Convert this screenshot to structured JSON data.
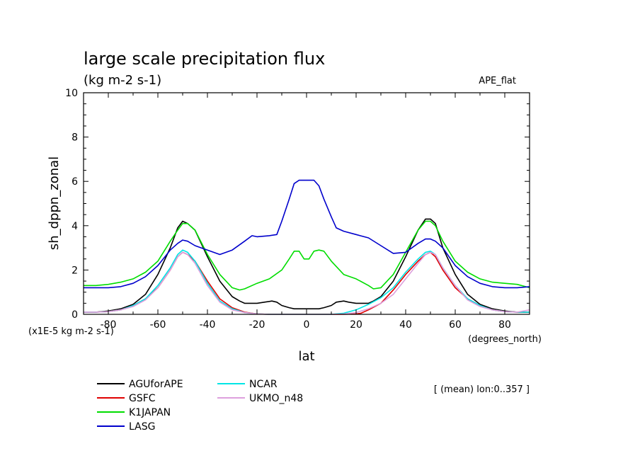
{
  "chart_data": {
    "type": "line",
    "title": "large scale precipitation flux",
    "subtitle": "(kg m-2 s-1)",
    "experiment": "APE_flat",
    "xlabel": "lat",
    "xunits": "(degrees_north)",
    "ylabel": "sh_dppn_zonal",
    "yscale_note": "(x1E-5 kg m-2 s-1)",
    "mean_note": "[ (mean) lon:0..357 ]",
    "xlim": [
      -90,
      90
    ],
    "ylim": [
      0,
      10
    ],
    "xticks": [
      -80,
      -60,
      -40,
      -20,
      0,
      20,
      40,
      60,
      80
    ],
    "yticks": [
      0,
      2,
      4,
      6,
      8,
      10
    ],
    "grid": false,
    "legend_position": "below",
    "series": [
      {
        "name": "AGUforAPE",
        "color": "#000000",
        "x": [
          -90,
          -85,
          -80,
          -75,
          -70,
          -65,
          -60,
          -55,
          -52,
          -50,
          -48,
          -45,
          -40,
          -35,
          -30,
          -27,
          -25,
          -20,
          -17,
          -14,
          -12,
          -10,
          -7,
          -5,
          -2,
          0,
          2,
          5,
          7,
          10,
          12,
          15,
          17,
          20,
          25,
          27,
          30,
          35,
          40,
          45,
          48,
          50,
          52,
          55,
          60,
          65,
          70,
          75,
          80,
          85,
          90
        ],
        "y": [
          0.1,
          0.1,
          0.15,
          0.25,
          0.45,
          0.9,
          1.8,
          3.0,
          3.9,
          4.2,
          4.1,
          3.8,
          2.6,
          1.5,
          0.8,
          0.6,
          0.5,
          0.5,
          0.55,
          0.6,
          0.55,
          0.4,
          0.3,
          0.25,
          0.25,
          0.25,
          0.25,
          0.25,
          0.3,
          0.4,
          0.55,
          0.6,
          0.55,
          0.5,
          0.5,
          0.6,
          0.8,
          1.5,
          2.6,
          3.8,
          4.3,
          4.3,
          4.1,
          3.0,
          1.8,
          0.9,
          0.45,
          0.25,
          0.15,
          0.1,
          0.1
        ]
      },
      {
        "name": "GSFC",
        "color": "#e00000",
        "x": [
          -90,
          -85,
          -80,
          -75,
          -70,
          -65,
          -60,
          -55,
          -52,
          -50,
          -48,
          -45,
          -40,
          -35,
          -30,
          -25,
          -22,
          -20,
          -15,
          -10,
          -5,
          0,
          5,
          10,
          15,
          20,
          22,
          25,
          30,
          35,
          40,
          45,
          48,
          50,
          52,
          55,
          60,
          65,
          70,
          75,
          80,
          85,
          90
        ],
        "y": [
          0.1,
          0.1,
          0.12,
          0.2,
          0.4,
          0.7,
          1.2,
          2.0,
          2.6,
          2.8,
          2.7,
          2.4,
          1.5,
          0.7,
          0.3,
          0.1,
          0.05,
          0.02,
          0.0,
          0.0,
          0.0,
          0.0,
          0.0,
          0.0,
          0.0,
          0.02,
          0.05,
          0.2,
          0.5,
          1.1,
          1.8,
          2.4,
          2.7,
          2.8,
          2.6,
          2.0,
          1.2,
          0.7,
          0.4,
          0.2,
          0.12,
          0.1,
          0.1
        ]
      },
      {
        "name": "K1JAPAN",
        "color": "#00dd00",
        "x": [
          -90,
          -85,
          -80,
          -75,
          -70,
          -65,
          -60,
          -55,
          -52,
          -50,
          -48,
          -45,
          -40,
          -35,
          -30,
          -27,
          -25,
          -20,
          -15,
          -10,
          -7,
          -5,
          -3,
          -1,
          1,
          3,
          5,
          7,
          10,
          15,
          20,
          25,
          27,
          30,
          35,
          40,
          45,
          48,
          50,
          52,
          55,
          60,
          65,
          70,
          75,
          80,
          85,
          90
        ],
        "y": [
          1.3,
          1.3,
          1.35,
          1.45,
          1.6,
          1.9,
          2.4,
          3.3,
          3.8,
          4.1,
          4.1,
          3.8,
          2.7,
          1.8,
          1.2,
          1.1,
          1.15,
          1.4,
          1.6,
          2.0,
          2.5,
          2.85,
          2.85,
          2.5,
          2.5,
          2.85,
          2.9,
          2.85,
          2.4,
          1.8,
          1.6,
          1.3,
          1.15,
          1.2,
          1.8,
          2.8,
          3.8,
          4.2,
          4.2,
          4.0,
          3.3,
          2.4,
          1.9,
          1.6,
          1.45,
          1.4,
          1.35,
          1.2
        ]
      },
      {
        "name": "LASG",
        "color": "#0000cc",
        "x": [
          -90,
          -85,
          -80,
          -75,
          -70,
          -65,
          -60,
          -55,
          -52,
          -50,
          -48,
          -45,
          -40,
          -35,
          -30,
          -25,
          -22,
          -20,
          -15,
          -12,
          -10,
          -7,
          -5,
          -3,
          0,
          3,
          5,
          7,
          10,
          12,
          15,
          20,
          25,
          30,
          35,
          40,
          45,
          48,
          50,
          52,
          55,
          60,
          65,
          70,
          75,
          80,
          85,
          90
        ],
        "y": [
          1.2,
          1.2,
          1.2,
          1.25,
          1.4,
          1.7,
          2.2,
          2.9,
          3.2,
          3.35,
          3.3,
          3.1,
          2.9,
          2.7,
          2.9,
          3.3,
          3.55,
          3.5,
          3.55,
          3.6,
          4.2,
          5.2,
          5.9,
          6.05,
          6.05,
          6.05,
          5.8,
          5.2,
          4.4,
          3.9,
          3.75,
          3.6,
          3.45,
          3.1,
          2.75,
          2.8,
          3.2,
          3.4,
          3.4,
          3.3,
          3.0,
          2.2,
          1.7,
          1.4,
          1.25,
          1.2,
          1.2,
          1.25
        ]
      },
      {
        "name": "NCAR",
        "color": "#00e5e5",
        "x": [
          -90,
          -85,
          -80,
          -75,
          -70,
          -65,
          -60,
          -55,
          -52,
          -50,
          -48,
          -45,
          -40,
          -35,
          -30,
          -25,
          -20,
          -15,
          -10,
          -5,
          0,
          5,
          10,
          15,
          20,
          25,
          30,
          35,
          40,
          45,
          48,
          50,
          52,
          55,
          60,
          65,
          70,
          75,
          80,
          85,
          90
        ],
        "y": [
          0.1,
          0.1,
          0.12,
          0.2,
          0.4,
          0.7,
          1.3,
          2.1,
          2.7,
          2.9,
          2.8,
          2.4,
          1.4,
          0.6,
          0.25,
          0.08,
          0.02,
          0.0,
          0.0,
          0.0,
          0.0,
          0.0,
          0.0,
          0.05,
          0.2,
          0.45,
          0.75,
          1.2,
          1.9,
          2.5,
          2.8,
          2.85,
          2.7,
          2.1,
          1.3,
          0.7,
          0.4,
          0.2,
          0.12,
          0.1,
          0.1
        ]
      },
      {
        "name": "UKMO_n48",
        "color": "#dda0dd",
        "x": [
          -90,
          -85,
          -80,
          -75,
          -70,
          -65,
          -60,
          -55,
          -52,
          -50,
          -48,
          -45,
          -40,
          -35,
          -30,
          -25,
          -20,
          -15,
          -10,
          -5,
          0,
          5,
          10,
          15,
          20,
          25,
          30,
          35,
          40,
          45,
          48,
          50,
          52,
          55,
          60,
          65,
          70,
          75,
          80,
          85,
          90
        ],
        "y": [
          0.1,
          0.1,
          0.12,
          0.2,
          0.35,
          0.65,
          1.2,
          2.0,
          2.6,
          2.8,
          2.7,
          2.3,
          1.3,
          0.55,
          0.2,
          0.08,
          0.02,
          0.0,
          0.0,
          0.0,
          0.0,
          0.0,
          0.0,
          0.02,
          0.08,
          0.25,
          0.5,
          0.9,
          1.6,
          2.3,
          2.7,
          2.8,
          2.7,
          2.1,
          1.3,
          0.65,
          0.35,
          0.2,
          0.12,
          0.1,
          0.2
        ]
      }
    ]
  }
}
